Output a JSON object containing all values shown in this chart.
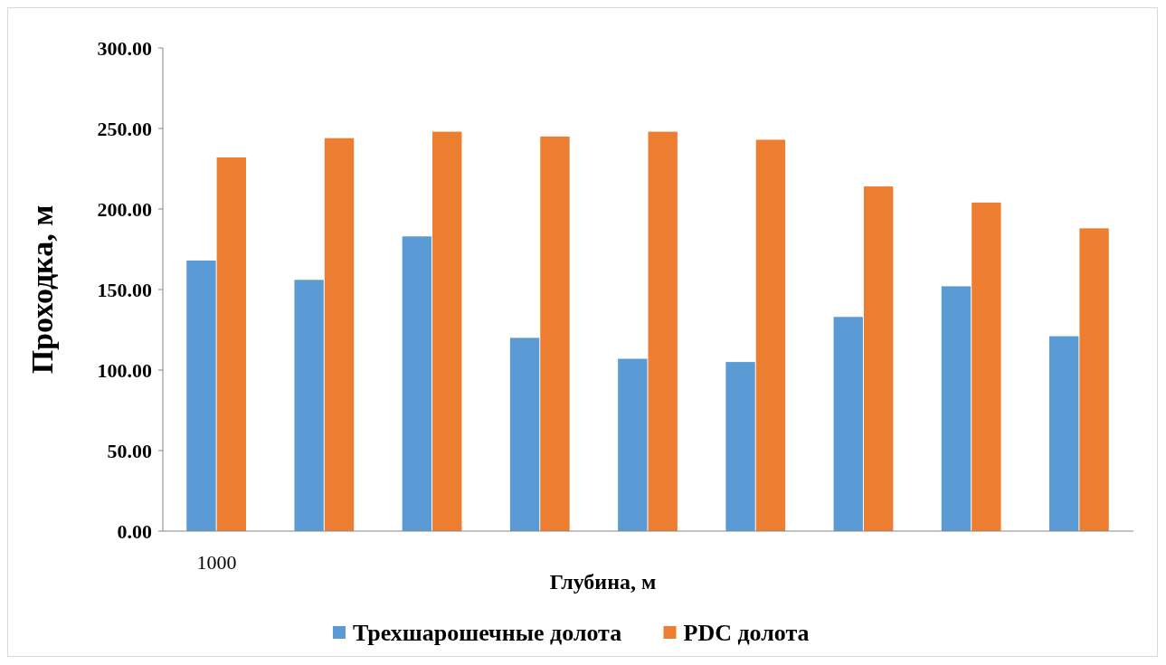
{
  "chart_data": {
    "type": "bar",
    "xlabel": "Глубина, м",
    "ylabel": "Проходка, м",
    "categories": [
      "1000",
      null,
      null,
      null,
      null,
      null,
      null,
      null,
      null
    ],
    "series": [
      {
        "name": "Трехшарошечные долота",
        "color": "#5b9bd5",
        "values": [
          168,
          156,
          183,
          120,
          107,
          105,
          133,
          152,
          121
        ]
      },
      {
        "name": "PDC долота",
        "color": "#ed7d31",
        "values": [
          232,
          244,
          248,
          245,
          248,
          243,
          214,
          204,
          188
        ]
      }
    ],
    "ylim": [
      0,
      300
    ],
    "yticks": [
      {
        "value": 0,
        "label": "0.00"
      },
      {
        "value": 50,
        "label": "50.00"
      },
      {
        "value": 100,
        "label": "100.00"
      },
      {
        "value": 150,
        "label": "150.00"
      },
      {
        "value": 200,
        "label": "200.00"
      },
      {
        "value": 250,
        "label": "250.00"
      },
      {
        "value": 300,
        "label": "300.00"
      }
    ],
    "grid": false,
    "legend": "bottom"
  }
}
